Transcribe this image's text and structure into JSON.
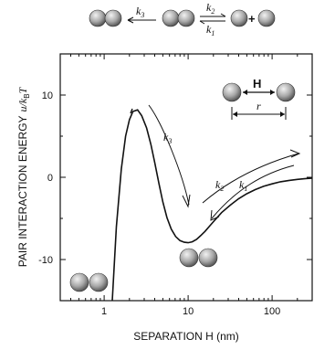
{
  "chart_data": {
    "type": "line",
    "xlabel": "SEPARATION H (nm)",
    "ylabel_main": "PAIR INTERACTION ENERGY",
    "ylabel_var": "u/k",
    "ylabel_sub": "B",
    "ylabel_T": "T",
    "xscale": "log",
    "xlim": [
      0.3,
      300
    ],
    "ylim": [
      -15,
      15
    ],
    "x_ticks": [
      1,
      10,
      100
    ],
    "x_tick_labels": [
      "1",
      "10",
      "100"
    ],
    "y_ticks": [
      -10,
      0,
      10
    ],
    "y_tick_labels": [
      "-10",
      "0",
      "10"
    ],
    "grid": false,
    "legend": "none",
    "series": [
      {
        "x": [
          1.25,
          1.4,
          1.6,
          1.8,
          2.0,
          2.2,
          2.5,
          2.8,
          3.2,
          3.6,
          4.0,
          4.5,
          5.0,
          5.6,
          6.3,
          7.1,
          8.0,
          9.0,
          10.0,
          11.2,
          12.6,
          14.1,
          15.8,
          17.8,
          20.0,
          25.0,
          31.6,
          40.0,
          50.0,
          63.0,
          79.0,
          100.0,
          126.0,
          160.0,
          200.0,
          251.0,
          300.0
        ],
        "y": [
          -15.0,
          -6.0,
          1.0,
          5.0,
          7.0,
          8.0,
          8.2,
          7.5,
          6.0,
          4.0,
          1.8,
          -0.8,
          -3.0,
          -4.9,
          -6.3,
          -7.2,
          -7.7,
          -7.9,
          -7.95,
          -7.85,
          -7.55,
          -7.1,
          -6.6,
          -6.0,
          -5.4,
          -4.3,
          -3.4,
          -2.6,
          -2.0,
          -1.5,
          -1.1,
          -0.8,
          -0.55,
          -0.38,
          -0.25,
          -0.16,
          -0.1
        ]
      }
    ],
    "annotations": {
      "k3": "k",
      "k3_sub": "3",
      "k2": "k",
      "k2_sub": "2",
      "k1": "k",
      "k1_sub": "1",
      "plus": "+",
      "H": "H",
      "r": "r"
    }
  }
}
